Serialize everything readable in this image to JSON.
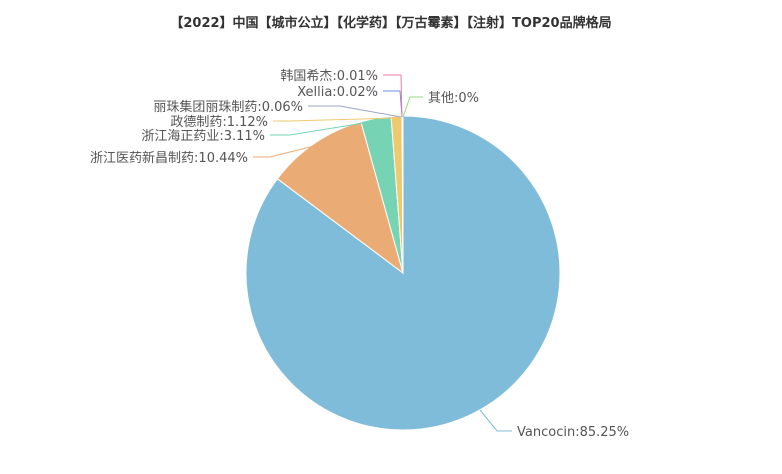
{
  "chart_data": {
    "type": "pie",
    "title": "【2022】中国【城市公立】【化学药】【万古霉素】【注射】TOP20品牌格局",
    "legend": "none",
    "slices": [
      {
        "name": "Vancocin",
        "value": 85.25,
        "label": "Vancocin:85.25%",
        "color": "#7fbcd9"
      },
      {
        "name": "浙江医药新昌制药",
        "value": 10.44,
        "label": "浙江医药新昌制药:10.44%",
        "color": "#ebab75"
      },
      {
        "name": "浙江海正药业",
        "value": 3.11,
        "label": "浙江海正药业:3.11%",
        "color": "#76d3b4"
      },
      {
        "name": "政德制药",
        "value": 1.12,
        "label": "政德制药:1.12%",
        "color": "#edca6e"
      },
      {
        "name": "丽珠集团丽珠制药",
        "value": 0.06,
        "label": "丽珠集团丽珠制药:0.06%",
        "color": "#9ca5c4"
      },
      {
        "name": "Xellia",
        "value": 0.02,
        "label": "Xellia:0.02%",
        "color": "#6d8fe0"
      },
      {
        "name": "韩国希杰",
        "value": 0.01,
        "label": "韩国希杰:0.01%",
        "color": "#ee7fa5"
      },
      {
        "name": "其他",
        "value": 0,
        "label": "其他:0%",
        "color": "#8fdc7d"
      }
    ]
  }
}
